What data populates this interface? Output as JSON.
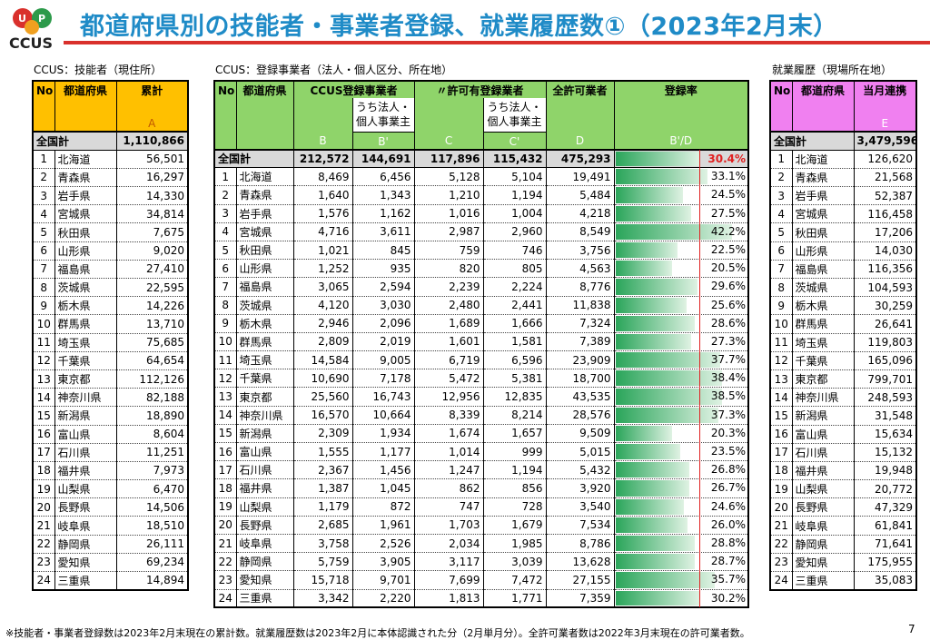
{
  "title": "都道府県別の技能者・事業者登録、就業履歴数①（2023年2月末）",
  "logo_text": "CCUS",
  "captions": {
    "workers": "CCUS：技能者（現住所）",
    "business": "CCUS：登録事業者（法人・個人区分、所在地）",
    "history": "就業履歴（現場所在地）"
  },
  "colors": {
    "workers_header": "#ffc000",
    "business_header": "#8fd46a",
    "history_header": "#f080f0",
    "total_row": "#d9d9d9",
    "accent_red": "#d9302c"
  },
  "headers": {
    "no": "No",
    "pref": "都道府県",
    "total": "累計",
    "ccus_reg": "CCUS登録事業者",
    "sub_corp": "うち法人・個人事業主",
    "permit": "〃許可有登録業者",
    "all_permit": "全許可業者",
    "reg_rate": "登録率",
    "monthly": "当月連携",
    "letters": {
      "A": "A",
      "B": "B",
      "B2": "B'",
      "C": "C",
      "C2": "C'",
      "D": "D",
      "rate": "B'/D",
      "E": "E"
    }
  },
  "total_row": {
    "label": "全国計",
    "A": "1,110,866",
    "B": "212,572",
    "B2": "144,691",
    "C": "117,896",
    "C2": "115,432",
    "D": "475,293",
    "rate": "30.4%",
    "E": "3,479,596"
  },
  "rows": [
    {
      "no": "1",
      "pref": "北海道",
      "A": "56,501",
      "B": "8,469",
      "B2": "6,456",
      "C": "5,128",
      "C2": "5,104",
      "D": "19,491",
      "rate": "33.1%",
      "rv": 33.1,
      "E": "126,620"
    },
    {
      "no": "2",
      "pref": "青森県",
      "A": "16,297",
      "B": "1,640",
      "B2": "1,343",
      "C": "1,210",
      "C2": "1,194",
      "D": "5,484",
      "rate": "24.5%",
      "rv": 24.5,
      "E": "21,568"
    },
    {
      "no": "3",
      "pref": "岩手県",
      "A": "14,330",
      "B": "1,576",
      "B2": "1,162",
      "C": "1,016",
      "C2": "1,004",
      "D": "4,218",
      "rate": "27.5%",
      "rv": 27.5,
      "E": "52,387"
    },
    {
      "no": "4",
      "pref": "宮城県",
      "A": "34,814",
      "B": "4,716",
      "B2": "3,611",
      "C": "2,987",
      "C2": "2,960",
      "D": "8,549",
      "rate": "42.2%",
      "rv": 42.2,
      "E": "116,458"
    },
    {
      "no": "5",
      "pref": "秋田県",
      "A": "7,675",
      "B": "1,021",
      "B2": "845",
      "C": "759",
      "C2": "746",
      "D": "3,756",
      "rate": "22.5%",
      "rv": 22.5,
      "E": "17,206"
    },
    {
      "no": "6",
      "pref": "山形県",
      "A": "9,020",
      "B": "1,252",
      "B2": "935",
      "C": "820",
      "C2": "805",
      "D": "4,563",
      "rate": "20.5%",
      "rv": 20.5,
      "E": "14,030"
    },
    {
      "no": "7",
      "pref": "福島県",
      "A": "27,410",
      "B": "3,065",
      "B2": "2,594",
      "C": "2,239",
      "C2": "2,224",
      "D": "8,776",
      "rate": "29.6%",
      "rv": 29.6,
      "E": "116,356"
    },
    {
      "no": "8",
      "pref": "茨城県",
      "A": "22,595",
      "B": "4,120",
      "B2": "3,030",
      "C": "2,480",
      "C2": "2,441",
      "D": "11,838",
      "rate": "25.6%",
      "rv": 25.6,
      "E": "104,593"
    },
    {
      "no": "9",
      "pref": "栃木県",
      "A": "14,226",
      "B": "2,946",
      "B2": "2,096",
      "C": "1,689",
      "C2": "1,666",
      "D": "7,324",
      "rate": "28.6%",
      "rv": 28.6,
      "E": "30,259"
    },
    {
      "no": "10",
      "pref": "群馬県",
      "A": "13,710",
      "B": "2,809",
      "B2": "2,019",
      "C": "1,601",
      "C2": "1,581",
      "D": "7,389",
      "rate": "27.3%",
      "rv": 27.3,
      "E": "26,641"
    },
    {
      "no": "11",
      "pref": "埼玉県",
      "A": "75,685",
      "B": "14,584",
      "B2": "9,005",
      "C": "6,719",
      "C2": "6,596",
      "D": "23,909",
      "rate": "37.7%",
      "rv": 37.7,
      "E": "119,803"
    },
    {
      "no": "12",
      "pref": "千葉県",
      "A": "64,654",
      "B": "10,690",
      "B2": "7,178",
      "C": "5,472",
      "C2": "5,381",
      "D": "18,700",
      "rate": "38.4%",
      "rv": 38.4,
      "E": "165,096"
    },
    {
      "no": "13",
      "pref": "東京都",
      "A": "112,126",
      "B": "25,560",
      "B2": "16,743",
      "C": "12,956",
      "C2": "12,835",
      "D": "43,535",
      "rate": "38.5%",
      "rv": 38.5,
      "E": "799,701"
    },
    {
      "no": "14",
      "pref": "神奈川県",
      "A": "82,188",
      "B": "16,570",
      "B2": "10,664",
      "C": "8,339",
      "C2": "8,214",
      "D": "28,576",
      "rate": "37.3%",
      "rv": 37.3,
      "E": "248,593"
    },
    {
      "no": "15",
      "pref": "新潟県",
      "A": "18,890",
      "B": "2,309",
      "B2": "1,934",
      "C": "1,674",
      "C2": "1,657",
      "D": "9,509",
      "rate": "20.3%",
      "rv": 20.3,
      "E": "31,548"
    },
    {
      "no": "16",
      "pref": "富山県",
      "A": "8,604",
      "B": "1,555",
      "B2": "1,177",
      "C": "1,014",
      "C2": "999",
      "D": "5,015",
      "rate": "23.5%",
      "rv": 23.5,
      "E": "15,634"
    },
    {
      "no": "17",
      "pref": "石川県",
      "A": "11,251",
      "B": "2,367",
      "B2": "1,456",
      "C": "1,247",
      "C2": "1,194",
      "D": "5,432",
      "rate": "26.8%",
      "rv": 26.8,
      "E": "15,132"
    },
    {
      "no": "18",
      "pref": "福井県",
      "A": "7,973",
      "B": "1,387",
      "B2": "1,045",
      "C": "862",
      "C2": "856",
      "D": "3,920",
      "rate": "26.7%",
      "rv": 26.7,
      "E": "19,948"
    },
    {
      "no": "19",
      "pref": "山梨県",
      "A": "6,470",
      "B": "1,179",
      "B2": "872",
      "C": "747",
      "C2": "728",
      "D": "3,540",
      "rate": "24.6%",
      "rv": 24.6,
      "E": "20,772"
    },
    {
      "no": "20",
      "pref": "長野県",
      "A": "14,506",
      "B": "2,685",
      "B2": "1,961",
      "C": "1,703",
      "C2": "1,679",
      "D": "7,534",
      "rate": "26.0%",
      "rv": 26.0,
      "E": "47,329"
    },
    {
      "no": "21",
      "pref": "岐阜県",
      "A": "18,510",
      "B": "3,758",
      "B2": "2,526",
      "C": "2,034",
      "C2": "1,985",
      "D": "8,786",
      "rate": "28.8%",
      "rv": 28.8,
      "E": "61,841"
    },
    {
      "no": "22",
      "pref": "静岡県",
      "A": "26,111",
      "B": "5,759",
      "B2": "3,905",
      "C": "3,117",
      "C2": "3,039",
      "D": "13,628",
      "rate": "28.7%",
      "rv": 28.7,
      "E": "71,641"
    },
    {
      "no": "23",
      "pref": "愛知県",
      "A": "69,234",
      "B": "15,718",
      "B2": "9,701",
      "C": "7,699",
      "C2": "7,472",
      "D": "27,155",
      "rate": "35.7%",
      "rv": 35.7,
      "E": "175,955"
    },
    {
      "no": "24",
      "pref": "三重県",
      "A": "14,894",
      "B": "3,342",
      "B2": "2,220",
      "C": "1,813",
      "C2": "1,771",
      "D": "7,359",
      "rate": "30.2%",
      "rv": 30.2,
      "E": "35,083"
    }
  ],
  "footnote": "※技能者・事業者登録数は2023年2月末現在の累計数。就業履歴数は2023年2月に本体認識された分（2月単月分）。全許可業者数は2022年3月末現在の許可業者数。",
  "page_number": "7"
}
